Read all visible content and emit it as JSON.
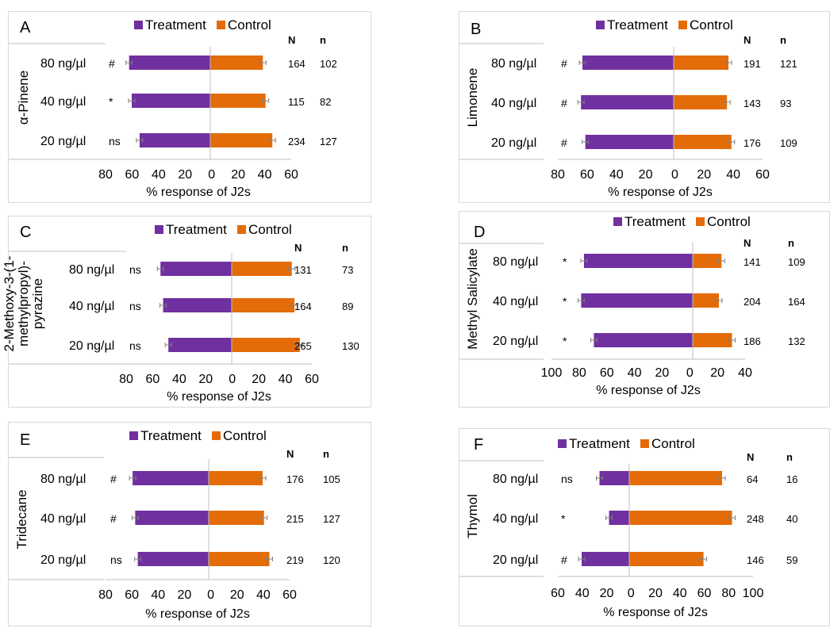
{
  "colors": {
    "treatment": "#7030a0",
    "control": "#e36c09",
    "errbar": "#7f7f7f",
    "axis": "#bfbfbf"
  },
  "chart_data": [
    {
      "panel": "A",
      "type": "bar",
      "orientation": "horizontal-diverging",
      "compound": "α-Pinene",
      "legend": [
        "Treatment",
        "Control"
      ],
      "xlabel": "% response of J2s",
      "xlim_left": 80,
      "xlim_right": 60,
      "ticks": [
        "80",
        "60",
        "40",
        "20",
        "0",
        "20",
        "40",
        "60"
      ],
      "col_headers": [
        "N",
        "n"
      ],
      "rows": [
        {
          "label": "80 ng/µl",
          "sig": "#",
          "treatment": 62,
          "control": 39,
          "N": "164",
          "n": "102"
        },
        {
          "label": "40 ng/µl",
          "sig": "*",
          "treatment": 60,
          "control": 41,
          "N": "115",
          "n": "82"
        },
        {
          "label": "20 ng/µl",
          "sig": "ns",
          "treatment": 54,
          "control": 46,
          "N": "234",
          "n": "127"
        }
      ]
    },
    {
      "panel": "B",
      "type": "bar",
      "orientation": "horizontal-diverging",
      "compound": "Limonene",
      "legend": [
        "Treatment",
        "Control"
      ],
      "xlabel": "% response of J2s",
      "xlim_left": 80,
      "xlim_right": 60,
      "ticks": [
        "80",
        "60",
        "40",
        "20",
        "0",
        "20",
        "40",
        "60"
      ],
      "col_headers": [
        "N",
        "n"
      ],
      "rows": [
        {
          "label": "80 ng/µl",
          "sig": "#",
          "treatment": 63,
          "control": 37,
          "N": "191",
          "n": "121"
        },
        {
          "label": "40 ng/µl",
          "sig": "#",
          "treatment": 64,
          "control": 36,
          "N": "143",
          "n": "93"
        },
        {
          "label": "20 ng/µl",
          "sig": "#",
          "treatment": 61,
          "control": 39,
          "N": "176",
          "n": "109"
        }
      ]
    },
    {
      "panel": "C",
      "type": "bar",
      "orientation": "horizontal-diverging",
      "compound": "2-Methoxy-3-(1-methylpropyl)-pyrazine",
      "compound_lines": [
        "2-Methoxy-3-(1-",
        "methylpropyl)-",
        "pyrazine"
      ],
      "legend": [
        "Treatment",
        "Control"
      ],
      "xlabel": "% response of J2s",
      "xlim_left": 80,
      "xlim_right": 60,
      "ticks": [
        "80",
        "60",
        "40",
        "20",
        "0",
        "20",
        "40",
        "60"
      ],
      "col_headers": [
        "N",
        "n"
      ],
      "rows": [
        {
          "label": "80 ng/µl",
          "sig": "ns",
          "treatment": 54,
          "control": 45,
          "N": "131",
          "n": "73"
        },
        {
          "label": "40 ng/µl",
          "sig": "ns",
          "treatment": 52,
          "control": 47,
          "N": "164",
          "n": "89"
        },
        {
          "label": "20 ng/µl",
          "sig": "ns",
          "treatment": 48,
          "control": 51,
          "N": "265",
          "n": "130"
        }
      ]
    },
    {
      "panel": "D",
      "type": "bar",
      "orientation": "horizontal-diverging",
      "compound": "Methyl Salicylate",
      "legend": [
        "Treatment",
        "Control"
      ],
      "xlabel": "% response of J2s",
      "xlim_left": 100,
      "xlim_right": 40,
      "ticks": [
        "100",
        "80",
        "60",
        "40",
        "20",
        "0",
        "20",
        "40"
      ],
      "col_headers": [
        "N",
        "n"
      ],
      "rows": [
        {
          "label": "80 ng/µl",
          "sig": "*",
          "treatment": 77,
          "control": 22,
          "N": "141",
          "n": "109"
        },
        {
          "label": "40 ng/µl",
          "sig": "*",
          "treatment": 79,
          "control": 20,
          "N": "204",
          "n": "164"
        },
        {
          "label": "20 ng/µl",
          "sig": "*",
          "treatment": 70,
          "control": 30,
          "N": "186",
          "n": "132"
        }
      ]
    },
    {
      "panel": "E",
      "type": "bar",
      "orientation": "horizontal-diverging",
      "compound": "Tridecane",
      "legend": [
        "Treatment",
        "Control"
      ],
      "xlabel": "% response of J2s",
      "xlim_left": 80,
      "xlim_right": 60,
      "ticks": [
        "80",
        "60",
        "40",
        "20",
        "0",
        "20",
        "40",
        "60"
      ],
      "col_headers": [
        "N",
        "n"
      ],
      "rows": [
        {
          "label": "80 ng/µl",
          "sig": "#",
          "treatment": 59,
          "control": 40,
          "N": "176",
          "n": "105"
        },
        {
          "label": "40 ng/µl",
          "sig": "#",
          "treatment": 57,
          "control": 41,
          "N": "215",
          "n": "127"
        },
        {
          "label": "20 ng/µl",
          "sig": "ns",
          "treatment": 55,
          "control": 45,
          "N": "219",
          "n": "120"
        }
      ]
    },
    {
      "panel": "F",
      "type": "bar",
      "orientation": "horizontal-diverging",
      "compound": "Thymol",
      "legend": [
        "Treatment",
        "Control"
      ],
      "xlabel": "% response of J2s",
      "xlim_left": 60,
      "xlim_right": 100,
      "ticks": [
        "60",
        "40",
        "20",
        "0",
        "20",
        "40",
        "60",
        "80",
        "100"
      ],
      "col_headers": [
        "N",
        "n"
      ],
      "rows": [
        {
          "label": "80 ng/µl",
          "sig": "ns",
          "treatment": 25,
          "control": 75,
          "N": "64",
          "n": "16"
        },
        {
          "label": "40 ng/µl",
          "sig": "*",
          "treatment": 17,
          "control": 83,
          "N": "248",
          "n": "40"
        },
        {
          "label": "20 ng/µl",
          "sig": "#",
          "treatment": 40,
          "control": 60,
          "N": "146",
          "n": "59"
        }
      ]
    }
  ]
}
